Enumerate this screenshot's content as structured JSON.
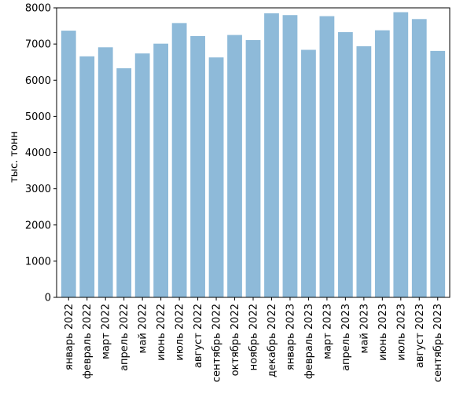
{
  "chart_data": {
    "type": "bar",
    "title": "",
    "xlabel": "",
    "ylabel": "тыс. тонн",
    "categories": [
      "январь 2022",
      "февраль 2022",
      "март 2022",
      "апрель 2022",
      "май 2022",
      "июнь 2022",
      "июль 2022",
      "август 2022",
      "сентябрь 2022",
      "октябрь 2022",
      "ноябрь 2022",
      "декабрь 2022",
      "январь 2023",
      "февраль 2023",
      "март 2023",
      "апрель 2023",
      "май 2023",
      "июнь 2023",
      "июль 2023",
      "август 2023",
      "сентябрь 2023"
    ],
    "values": [
      7370,
      6660,
      6910,
      6330,
      6740,
      7010,
      7580,
      7220,
      6630,
      7250,
      7110,
      7850,
      7800,
      6840,
      7770,
      7330,
      6940,
      7380,
      7880,
      7690,
      6810
    ],
    "ylim": [
      0,
      8000
    ],
    "yticks": [
      0,
      1000,
      2000,
      3000,
      4000,
      5000,
      6000,
      7000,
      8000
    ],
    "bar_color": "#8ebad9",
    "grid": false,
    "legend": "none"
  }
}
